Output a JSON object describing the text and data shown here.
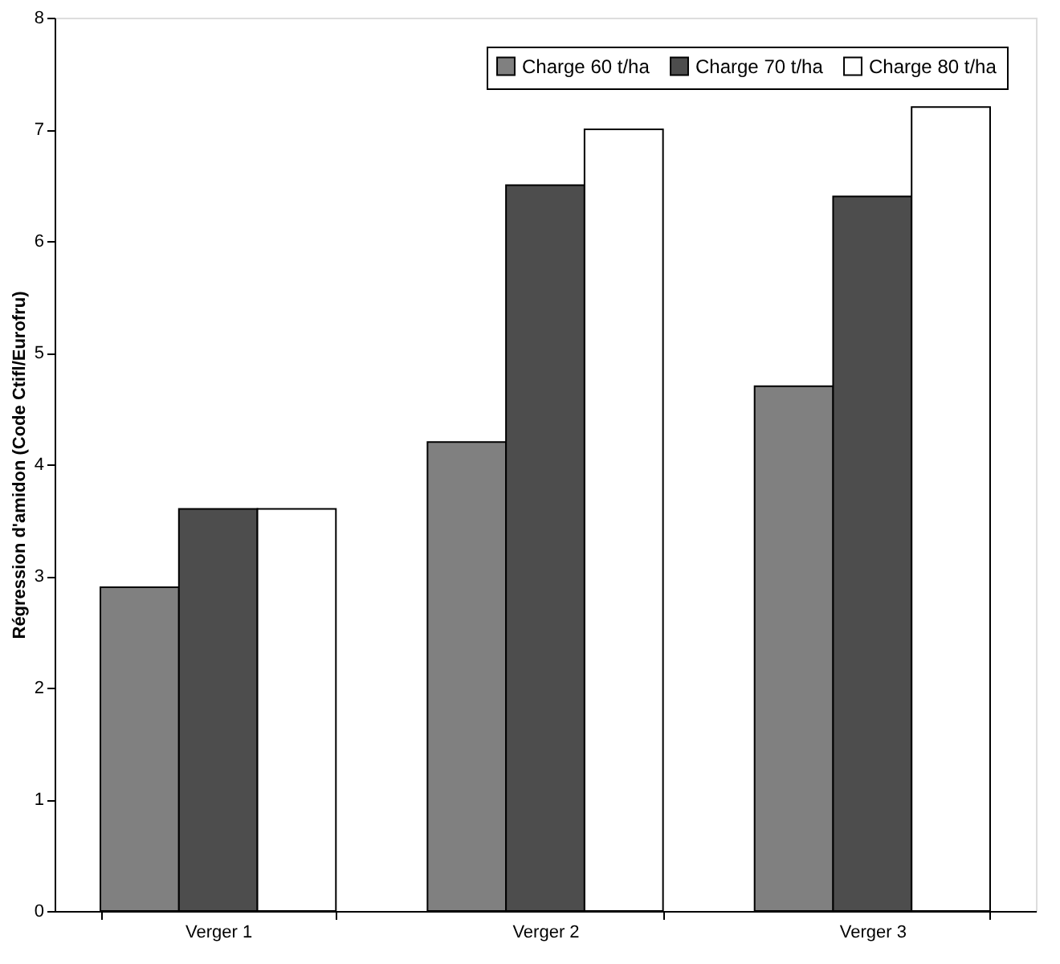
{
  "chart_data": {
    "type": "bar",
    "ylabel": "Régression d'amidon (Code Ctifl/Eurofru)",
    "categories": [
      "Verger 1",
      "Verger 2",
      "Verger 3"
    ],
    "series": [
      {
        "name": "Charge 60 t/ha",
        "color": "#808080",
        "values": [
          2.9,
          4.2,
          4.7
        ]
      },
      {
        "name": "Charge 70 t/ha",
        "color": "#4d4d4d",
        "values": [
          3.6,
          6.5,
          6.4
        ]
      },
      {
        "name": "Charge 80 t/ha",
        "color": "#ffffff",
        "values": [
          3.6,
          7.0,
          7.2
        ]
      }
    ],
    "ylim": [
      0,
      8
    ],
    "yticks": [
      0,
      1,
      2,
      3,
      4,
      5,
      6,
      7,
      8
    ],
    "grid": false,
    "legend": "top right"
  }
}
